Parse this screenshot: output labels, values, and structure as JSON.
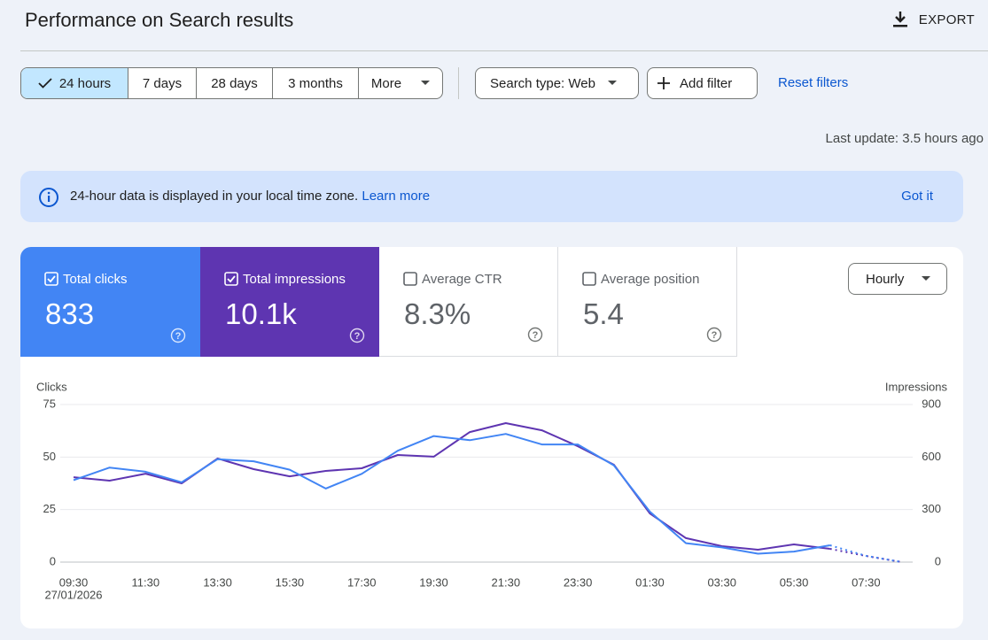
{
  "header": {
    "title": "Performance on Search results",
    "export": "EXPORT"
  },
  "toolbar": {
    "date_ranges": [
      "24 hours",
      "7 days",
      "28 days",
      "3 months",
      "More"
    ],
    "selected": 0,
    "search_type": "Search type: Web",
    "add_filter": "Add filter",
    "reset": "Reset filters"
  },
  "last_update": "Last update: 3.5 hours ago",
  "banner": {
    "text": "24-hour data is displayed in your local time zone.",
    "link": "Learn more",
    "dismiss": "Got it"
  },
  "metrics": [
    {
      "label": "Total clicks",
      "value": "833",
      "checked": true,
      "color": "#4285f4"
    },
    {
      "label": "Total impressions",
      "value": "10.1k",
      "checked": true,
      "color": "#5e35b1"
    },
    {
      "label": "Average CTR",
      "value": "8.3%",
      "checked": false,
      "color": "#00897b"
    },
    {
      "label": "Average position",
      "value": "5.4",
      "checked": false,
      "color": "#e8710a"
    }
  ],
  "granularity": "Hourly",
  "chart_data": {
    "type": "line",
    "y_label": "Clicks",
    "y2_label": "Impressions",
    "categories": [
      "09:30",
      null,
      "11:30",
      null,
      "13:30",
      null,
      "15:30",
      null,
      "17:30",
      null,
      "19:30",
      null,
      "21:30",
      null,
      "23:30",
      null,
      "01:30",
      null,
      "03:30",
      null,
      "05:30",
      null,
      "07:30",
      null
    ],
    "start_date": "27/01/2026",
    "series": [
      {
        "name": "Clicks",
        "color": "#4285f4",
        "values": [
          39,
          45,
          43,
          38,
          49,
          48,
          44,
          35,
          42,
          53,
          60,
          58,
          61,
          56,
          56,
          46,
          24,
          9,
          7,
          4,
          5,
          8,
          3,
          0
        ]
      },
      {
        "name": "Impressions",
        "color": "#5e35b1",
        "axis": "y2",
        "values": [
          485,
          465,
          505,
          450,
          592,
          531,
          490,
          521,
          536,
          612,
          602,
          743,
          794,
          753,
          662,
          556,
          278,
          137,
          91,
          71,
          101,
          76,
          35,
          0
        ]
      }
    ],
    "dotted_from_index": 21,
    "ylim": [
      0,
      75
    ],
    "yticks": [
      0,
      25,
      50,
      75
    ],
    "y2lim": [
      0,
      900
    ],
    "y2ticks": [
      0,
      300,
      600,
      900
    ],
    "grid": true
  }
}
